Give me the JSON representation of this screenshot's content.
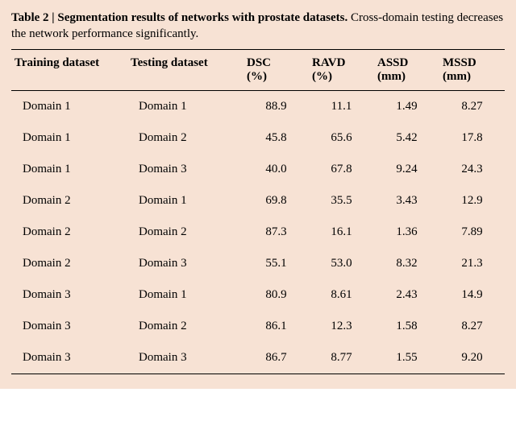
{
  "caption": {
    "lead": "Table 2 | Segmentation results of networks with prostate datasets.",
    "rest": " Cross-domain testing decreases the network performance significantly."
  },
  "colors": {
    "background": "#f7e2d4",
    "text": "#000000",
    "rule": "#000000"
  },
  "columns": [
    {
      "key": "train",
      "label": "Training dataset",
      "unit": "",
      "type": "text"
    },
    {
      "key": "test",
      "label": "Testing dataset",
      "unit": "",
      "type": "text"
    },
    {
      "key": "dsc",
      "label": "DSC",
      "unit": "(%)",
      "type": "num"
    },
    {
      "key": "ravd",
      "label": "RAVD",
      "unit": "(%)",
      "type": "num"
    },
    {
      "key": "assd",
      "label": "ASSD",
      "unit": "(mm)",
      "type": "num"
    },
    {
      "key": "mssd",
      "label": "MSSD",
      "unit": "(mm)",
      "type": "num"
    }
  ],
  "rows": [
    {
      "train": "Domain 1",
      "test": "Domain 1",
      "dsc": "88.9",
      "ravd": "11.1",
      "assd": "1.49",
      "mssd": "8.27"
    },
    {
      "train": "Domain 1",
      "test": "Domain 2",
      "dsc": "45.8",
      "ravd": "65.6",
      "assd": "5.42",
      "mssd": "17.8"
    },
    {
      "train": "Domain 1",
      "test": "Domain 3",
      "dsc": "40.0",
      "ravd": "67.8",
      "assd": "9.24",
      "mssd": "24.3"
    },
    {
      "train": "Domain 2",
      "test": "Domain 1",
      "dsc": "69.8",
      "ravd": "35.5",
      "assd": "3.43",
      "mssd": "12.9"
    },
    {
      "train": "Domain 2",
      "test": "Domain 2",
      "dsc": "87.3",
      "ravd": "16.1",
      "assd": "1.36",
      "mssd": "7.89"
    },
    {
      "train": "Domain 2",
      "test": "Domain 3",
      "dsc": "55.1",
      "ravd": "53.0",
      "assd": "8.32",
      "mssd": "21.3"
    },
    {
      "train": "Domain 3",
      "test": "Domain 1",
      "dsc": "80.9",
      "ravd": "8.61",
      "assd": "2.43",
      "mssd": "14.9"
    },
    {
      "train": "Domain 3",
      "test": "Domain 2",
      "dsc": "86.1",
      "ravd": "12.3",
      "assd": "1.58",
      "mssd": "8.27"
    },
    {
      "train": "Domain 3",
      "test": "Domain 3",
      "dsc": "86.7",
      "ravd": "8.77",
      "assd": "1.55",
      "mssd": "9.20"
    }
  ]
}
